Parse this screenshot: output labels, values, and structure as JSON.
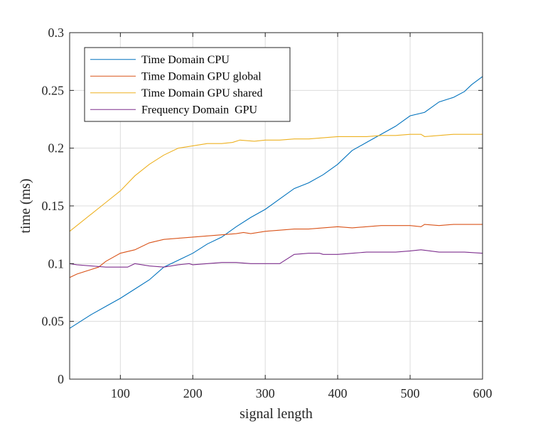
{
  "chart_data": {
    "type": "line",
    "title": "",
    "xlabel": "signal length",
    "ylabel": "time (ms)",
    "xlim": [
      30,
      600
    ],
    "ylim": [
      0,
      0.3
    ],
    "xticks": [
      100,
      200,
      300,
      400,
      500,
      600
    ],
    "xtick_labels": [
      "100",
      "200",
      "300",
      "400",
      "500",
      "600"
    ],
    "yticks": [
      0,
      0.05,
      0.1,
      0.15,
      0.2,
      0.25,
      0.3
    ],
    "ytick_labels": [
      "0",
      "0.05",
      "0.1",
      "0.15",
      "0.2",
      "0.25",
      "0.3"
    ],
    "grid": true,
    "legend_position": "top-left",
    "series": [
      {
        "name": "Time Domain CPU",
        "color": "#0072BD",
        "points": [
          [
            30,
            0.044
          ],
          [
            40,
            0.048
          ],
          [
            60,
            0.056
          ],
          [
            80,
            0.063
          ],
          [
            100,
            0.07
          ],
          [
            120,
            0.078
          ],
          [
            140,
            0.086
          ],
          [
            160,
            0.097
          ],
          [
            180,
            0.103
          ],
          [
            200,
            0.109
          ],
          [
            220,
            0.117
          ],
          [
            240,
            0.123
          ],
          [
            260,
            0.132
          ],
          [
            280,
            0.14
          ],
          [
            300,
            0.147
          ],
          [
            320,
            0.156
          ],
          [
            340,
            0.165
          ],
          [
            360,
            0.17
          ],
          [
            380,
            0.177
          ],
          [
            400,
            0.186
          ],
          [
            420,
            0.198
          ],
          [
            440,
            0.205
          ],
          [
            460,
            0.212
          ],
          [
            480,
            0.219
          ],
          [
            500,
            0.228
          ],
          [
            520,
            0.231
          ],
          [
            540,
            0.24
          ],
          [
            560,
            0.244
          ],
          [
            575,
            0.249
          ],
          [
            585,
            0.255
          ],
          [
            600,
            0.262
          ]
        ]
      },
      {
        "name": "Time Domain GPU global",
        "color": "#D95319",
        "points": [
          [
            30,
            0.088
          ],
          [
            40,
            0.091
          ],
          [
            60,
            0.095
          ],
          [
            70,
            0.097
          ],
          [
            80,
            0.102
          ],
          [
            100,
            0.109
          ],
          [
            120,
            0.112
          ],
          [
            140,
            0.118
          ],
          [
            160,
            0.121
          ],
          [
            180,
            0.122
          ],
          [
            200,
            0.123
          ],
          [
            220,
            0.124
          ],
          [
            240,
            0.125
          ],
          [
            260,
            0.126
          ],
          [
            270,
            0.127
          ],
          [
            280,
            0.126
          ],
          [
            300,
            0.128
          ],
          [
            320,
            0.129
          ],
          [
            340,
            0.13
          ],
          [
            360,
            0.13
          ],
          [
            380,
            0.131
          ],
          [
            400,
            0.132
          ],
          [
            420,
            0.131
          ],
          [
            440,
            0.132
          ],
          [
            460,
            0.133
          ],
          [
            480,
            0.133
          ],
          [
            500,
            0.133
          ],
          [
            515,
            0.132
          ],
          [
            520,
            0.134
          ],
          [
            540,
            0.133
          ],
          [
            560,
            0.134
          ],
          [
            580,
            0.134
          ],
          [
            600,
            0.134
          ]
        ]
      },
      {
        "name": "Time Domain GPU shared",
        "color": "#EDB120",
        "points": [
          [
            30,
            0.128
          ],
          [
            40,
            0.133
          ],
          [
            60,
            0.143
          ],
          [
            80,
            0.153
          ],
          [
            100,
            0.163
          ],
          [
            120,
            0.176
          ],
          [
            140,
            0.186
          ],
          [
            160,
            0.194
          ],
          [
            180,
            0.2
          ],
          [
            200,
            0.202
          ],
          [
            220,
            0.204
          ],
          [
            240,
            0.204
          ],
          [
            255,
            0.205
          ],
          [
            265,
            0.207
          ],
          [
            285,
            0.206
          ],
          [
            300,
            0.207
          ],
          [
            320,
            0.207
          ],
          [
            340,
            0.208
          ],
          [
            360,
            0.208
          ],
          [
            380,
            0.209
          ],
          [
            400,
            0.21
          ],
          [
            420,
            0.21
          ],
          [
            440,
            0.21
          ],
          [
            460,
            0.211
          ],
          [
            480,
            0.211
          ],
          [
            500,
            0.212
          ],
          [
            515,
            0.212
          ],
          [
            520,
            0.21
          ],
          [
            540,
            0.211
          ],
          [
            560,
            0.212
          ],
          [
            580,
            0.212
          ],
          [
            600,
            0.212
          ]
        ]
      },
      {
        "name": "Frequency Domain  GPU",
        "color": "#7E2F8E",
        "points": [
          [
            30,
            0.1
          ],
          [
            40,
            0.099
          ],
          [
            60,
            0.098
          ],
          [
            80,
            0.097
          ],
          [
            100,
            0.097
          ],
          [
            110,
            0.097
          ],
          [
            120,
            0.1
          ],
          [
            140,
            0.098
          ],
          [
            160,
            0.097
          ],
          [
            180,
            0.099
          ],
          [
            195,
            0.1
          ],
          [
            200,
            0.099
          ],
          [
            220,
            0.1
          ],
          [
            240,
            0.101
          ],
          [
            260,
            0.101
          ],
          [
            280,
            0.1
          ],
          [
            300,
            0.1
          ],
          [
            320,
            0.1
          ],
          [
            340,
            0.108
          ],
          [
            360,
            0.109
          ],
          [
            375,
            0.109
          ],
          [
            380,
            0.108
          ],
          [
            400,
            0.108
          ],
          [
            420,
            0.109
          ],
          [
            440,
            0.11
          ],
          [
            460,
            0.11
          ],
          [
            480,
            0.11
          ],
          [
            500,
            0.111
          ],
          [
            515,
            0.112
          ],
          [
            540,
            0.11
          ],
          [
            560,
            0.11
          ],
          [
            575,
            0.11
          ],
          [
            600,
            0.109
          ]
        ]
      }
    ]
  }
}
